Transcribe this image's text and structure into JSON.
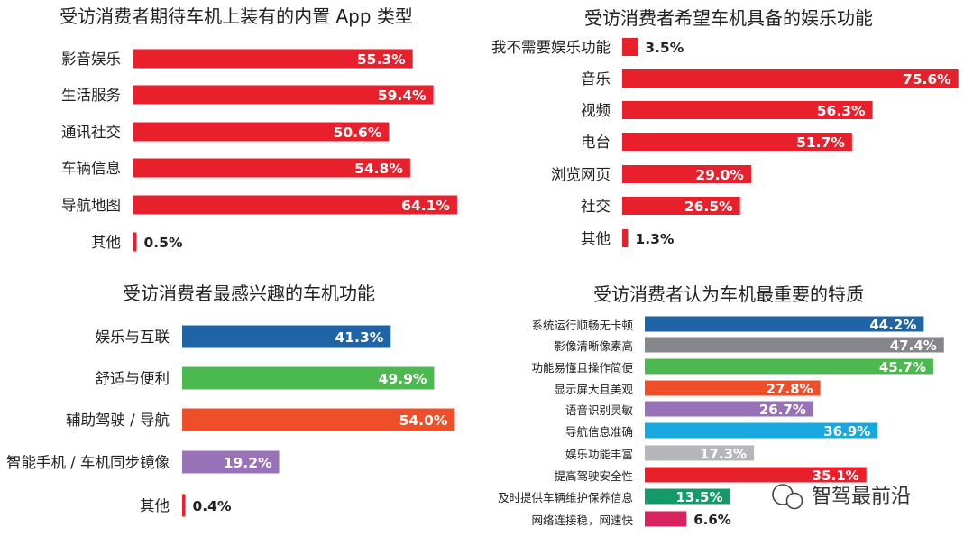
{
  "chart_data": [
    {
      "type": "bar",
      "orientation": "horizontal",
      "title": "受访消费者期待车机上装有的内置 App 类型",
      "categories": [
        "影音娱乐",
        "生活服务",
        "通讯社交",
        "车辆信息",
        "导航地图",
        "其他"
      ],
      "values": [
        55.3,
        59.4,
        50.6,
        54.8,
        64.1,
        0.5
      ],
      "labels": [
        "55.3%",
        "59.4%",
        "50.6%",
        "54.8%",
        "64.1%",
        "0.5%"
      ],
      "colors": [
        "#e8202c",
        "#e8202c",
        "#e8202c",
        "#e8202c",
        "#e8202c",
        "#e8202c"
      ],
      "xlim": [
        0,
        100
      ]
    },
    {
      "type": "bar",
      "orientation": "horizontal",
      "title": "受访消费者希望车机具备的娱乐功能",
      "categories": [
        "我不需要娱乐功能",
        "音乐",
        "视频",
        "电台",
        "浏览网页",
        "社交",
        "其他"
      ],
      "values": [
        3.5,
        75.6,
        56.3,
        51.7,
        29.0,
        26.5,
        1.3
      ],
      "labels": [
        "3.5%",
        "75.6%",
        "56.3%",
        "51.7%",
        "29.0%",
        "26.5%",
        "1.3%"
      ],
      "colors": [
        "#e8202c",
        "#e8202c",
        "#e8202c",
        "#e8202c",
        "#e8202c",
        "#e8202c",
        "#e8202c"
      ],
      "xlim": [
        0,
        100
      ]
    },
    {
      "type": "bar",
      "orientation": "horizontal",
      "title": "受访消费者最感兴趣的车机功能",
      "categories": [
        "娱乐与互联",
        "舒适与便利",
        "辅助驾驶 / 导航",
        "智能手机 / 车机同步镜像",
        "其他"
      ],
      "values": [
        41.3,
        49.9,
        54.0,
        19.2,
        0.4
      ],
      "labels": [
        "41.3%",
        "49.9%",
        "54.0%",
        "19.2%",
        "0.4%"
      ],
      "colors": [
        "#1f64a6",
        "#4cb850",
        "#ef4f28",
        "#9872b6",
        "#e8202c"
      ],
      "xlim": [
        0,
        100
      ]
    },
    {
      "type": "bar",
      "orientation": "horizontal",
      "title": "受访消费者认为车机最重要的特质",
      "categories": [
        "系统运行顺畅无卡顿",
        "影像清晰像素高",
        "功能易懂且操作简便",
        "显示屏大且美观",
        "语音识别灵敏",
        "导航信息准确",
        "娱乐功能丰富",
        "提高驾驶安全性",
        "及时提供车辆维护保养信息",
        "网络连接稳，网速快"
      ],
      "values": [
        44.2,
        47.4,
        45.7,
        27.8,
        26.7,
        36.9,
        17.3,
        35.1,
        13.5,
        6.6
      ],
      "labels": [
        "44.2%",
        "47.4%",
        "45.7%",
        "27.8%",
        "26.7%",
        "36.9%",
        "17.3%",
        "35.1%",
        "13.5%",
        "6.6%"
      ],
      "colors": [
        "#1f64a6",
        "#85868a",
        "#4cb850",
        "#ef4f28",
        "#9872b6",
        "#17a8df",
        "#b6b7ba",
        "#e8202c",
        "#139a68",
        "#d7235f"
      ],
      "xlim": [
        0,
        100
      ]
    }
  ],
  "watermark": {
    "text": "智驾最前沿"
  }
}
